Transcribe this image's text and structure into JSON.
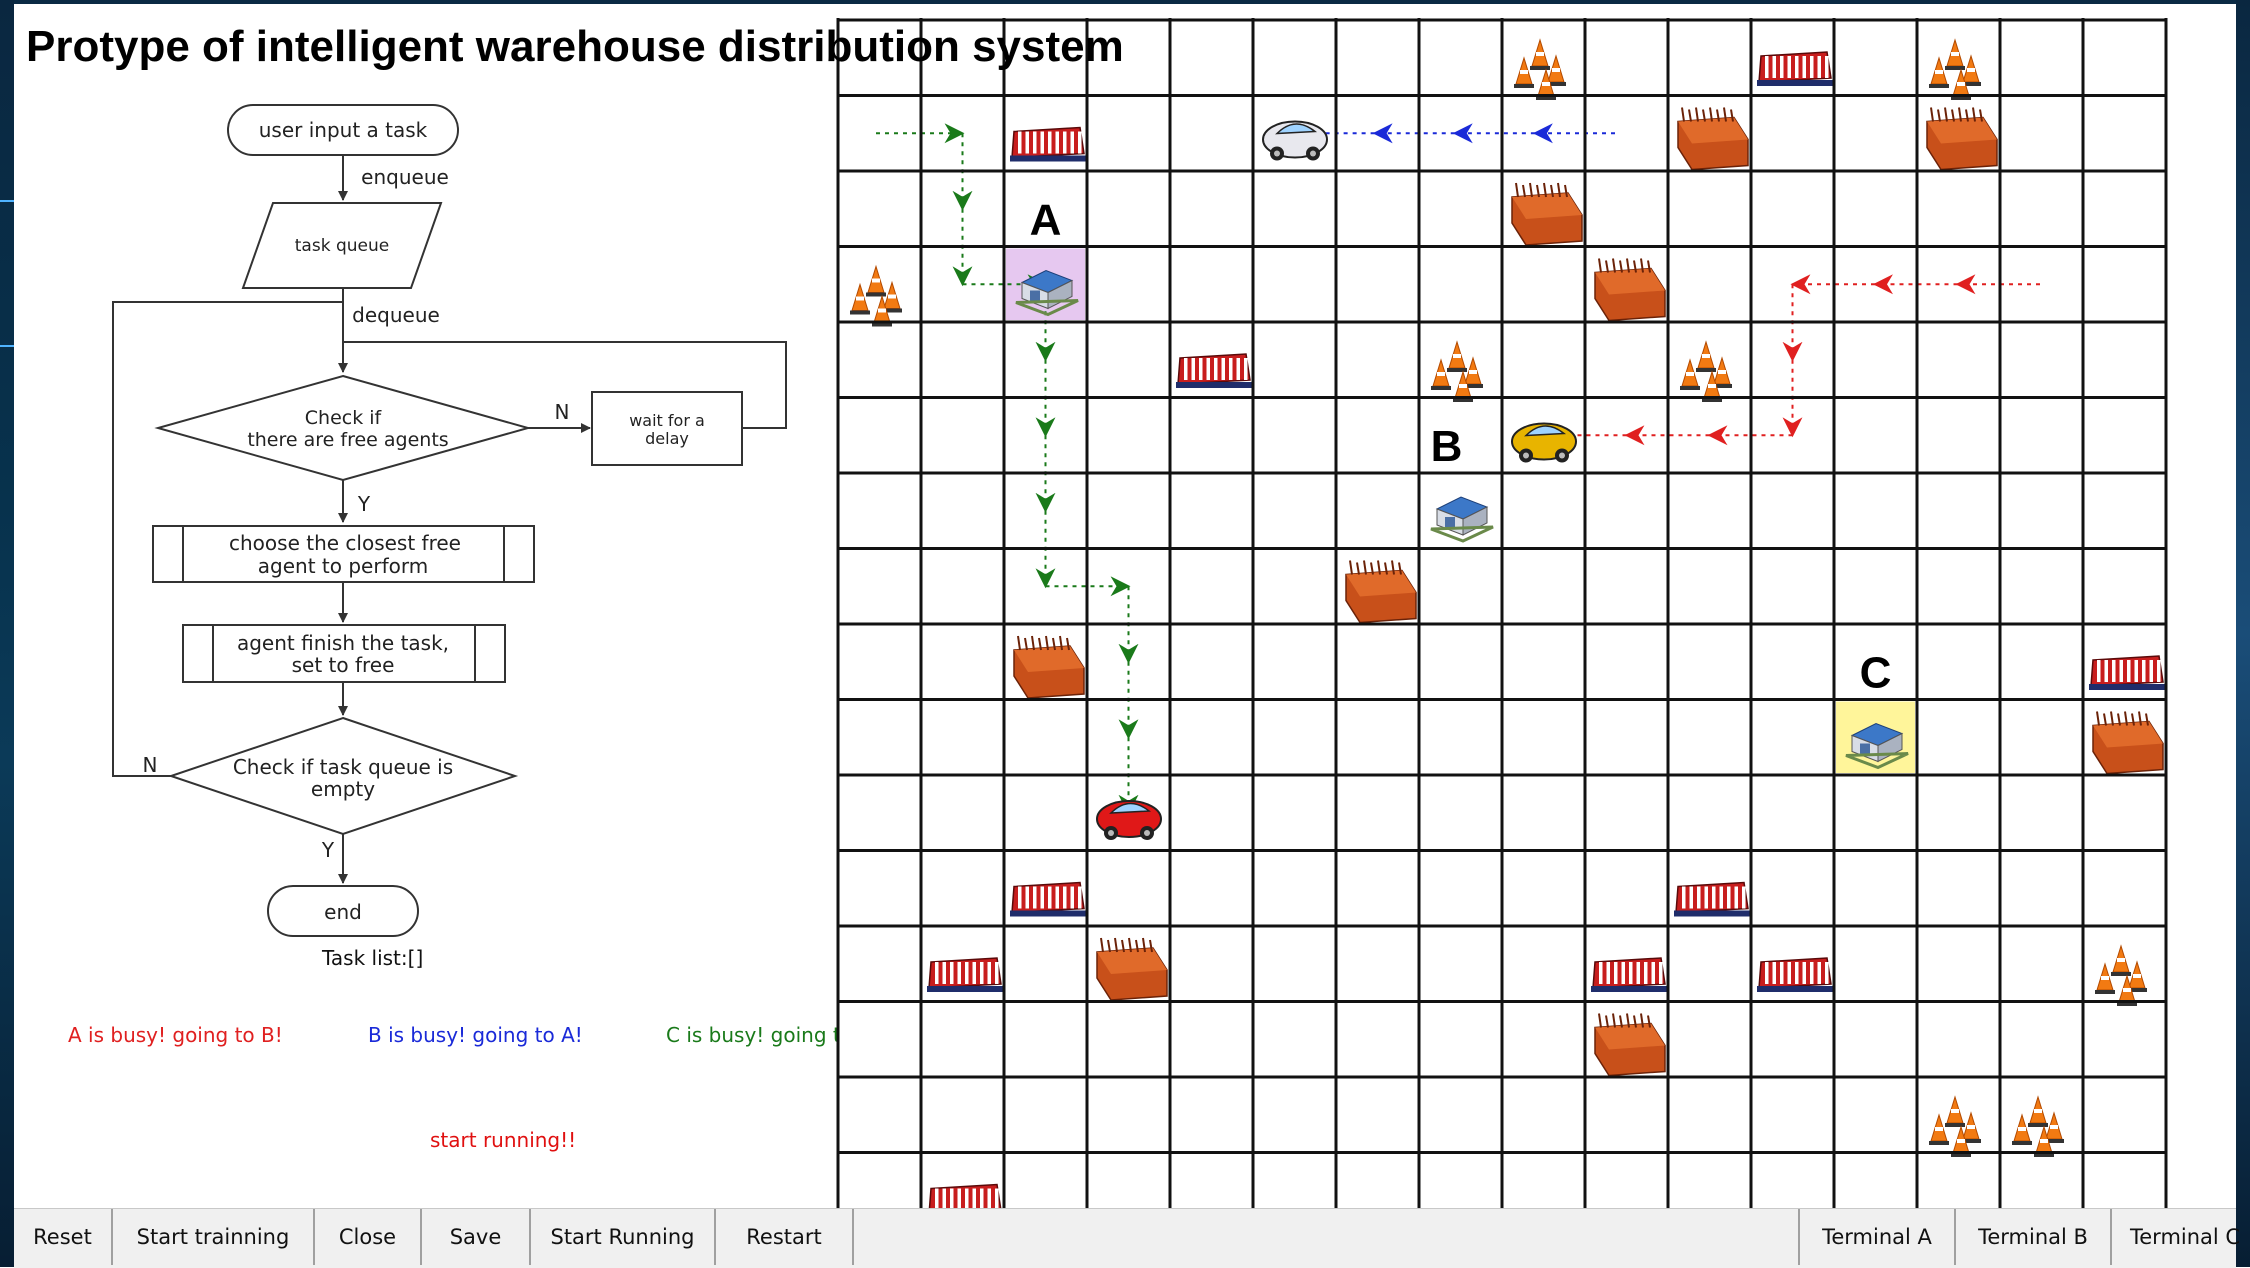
{
  "title": "Protype of intelligent warehouse distribution system",
  "flowchart": {
    "start": "user input a task",
    "enqueue": "enqueue",
    "task_queue": "task queue",
    "dequeue": "dequeue",
    "check_free_1": "Check if",
    "check_free_2": "there are free agents",
    "no_1": "N",
    "wait_1": "wait for a",
    "wait_2": "delay",
    "yes_1": "Y",
    "choose_1": "choose the closest free",
    "choose_2": "agent to perform",
    "finish_1": "agent finish the task,",
    "finish_2": "set to free",
    "check_queue_1": "Check if task queue is",
    "check_queue_2": "empty",
    "no_2": "N",
    "yes_2": "Y",
    "end": "end"
  },
  "task_list": "Task list:[]",
  "status": {
    "a": "A is busy! going to B!",
    "b": "B is busy! going to A!",
    "c": "C is busy! going to C!",
    "colors": {
      "a": "#e02020",
      "b": "#1a2ad8",
      "c": "#1a7a1a"
    }
  },
  "running_message": "start running!!",
  "grid": {
    "columns": 16,
    "visible_rows": 16,
    "cell_legend": [
      "traffic-cone",
      "barrier",
      "brick-wall",
      "warehouse",
      "car"
    ],
    "terminals": [
      {
        "label": "A",
        "col": 2,
        "row": 3,
        "highlight": "#e6c8f0"
      },
      {
        "label": "B",
        "col": 7,
        "row": 6,
        "highlight": null
      },
      {
        "label": "C",
        "col": 12,
        "row": 9,
        "highlight": "#fff59a"
      }
    ],
    "agents": [
      {
        "name": "red-car",
        "col": 3,
        "row": 10,
        "path_color": "#1a7a1a"
      },
      {
        "name": "white-car",
        "col": 5,
        "row": 1,
        "path_color": "#1a2ad8"
      },
      {
        "name": "yellow-car",
        "col": 8,
        "row": 5,
        "path_color": "#e02020"
      }
    ],
    "obstacles": {
      "cones": [
        [
          8,
          0
        ],
        [
          13,
          0
        ],
        [
          0,
          3
        ],
        [
          7,
          4
        ],
        [
          10,
          4
        ],
        [
          15,
          12
        ],
        [
          13,
          14
        ],
        [
          14,
          14
        ]
      ],
      "barriers": [
        [
          11,
          0
        ],
        [
          2,
          1
        ],
        [
          4,
          4
        ],
        [
          15,
          8
        ],
        [
          2,
          11
        ],
        [
          10,
          11
        ],
        [
          1,
          12
        ],
        [
          9,
          12
        ],
        [
          11,
          12
        ],
        [
          1,
          15
        ]
      ],
      "walls": [
        [
          10,
          1
        ],
        [
          13,
          1
        ],
        [
          8,
          2
        ],
        [
          9,
          3
        ],
        [
          6,
          7
        ],
        [
          2,
          8
        ],
        [
          15,
          9
        ],
        [
          3,
          12
        ],
        [
          9,
          13
        ]
      ]
    }
  },
  "toolbar": {
    "buttons": [
      "Reset",
      "Start trainning",
      "Close",
      "Save",
      "Start Running",
      "Restart"
    ],
    "terminals": [
      "Terminal A",
      "Terminal B",
      "Terminal C"
    ]
  }
}
